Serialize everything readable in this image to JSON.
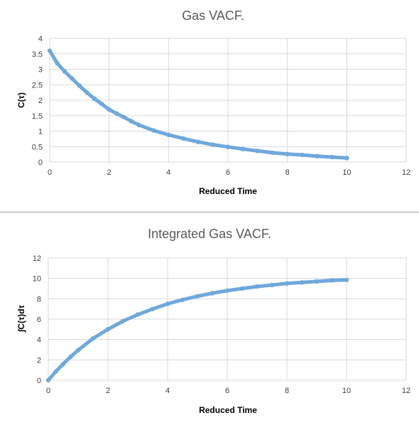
{
  "colors": {
    "series": "#6fa8dc",
    "grid": "#d9d9d9",
    "divider": "#d9d9d9"
  },
  "chart_data": [
    {
      "type": "scatter",
      "title": "Gas VACF.",
      "xlabel": "Reduced Time",
      "ylabel": "C(τ)",
      "xlim": [
        0,
        12
      ],
      "ylim": [
        0,
        4
      ],
      "xticks": [
        "0",
        "2",
        "4",
        "6",
        "8",
        "10",
        "12"
      ],
      "yticks": [
        "0",
        "0.5",
        "1",
        "1.5",
        "2",
        "2.5",
        "3",
        "3.5",
        "4"
      ],
      "grid": true,
      "legend": "none",
      "series": [
        {
          "x": [
            0,
            0.25,
            0.5,
            0.75,
            1,
            1.25,
            1.5,
            1.75,
            2,
            2.25,
            2.5,
            2.75,
            3,
            3.5,
            4,
            4.5,
            5,
            5.5,
            6,
            6.5,
            7,
            7.5,
            8,
            8.5,
            9,
            9.5,
            10
          ],
          "y": [
            3.6,
            3.2,
            2.93,
            2.7,
            2.47,
            2.25,
            2.05,
            1.88,
            1.7,
            1.57,
            1.45,
            1.32,
            1.2,
            1.02,
            0.88,
            0.76,
            0.65,
            0.56,
            0.49,
            0.42,
            0.36,
            0.3,
            0.26,
            0.23,
            0.19,
            0.16,
            0.13
          ]
        }
      ]
    },
    {
      "type": "scatter",
      "title": "Integrated Gas VACF.",
      "xlabel": "Reduced Time",
      "ylabel": "∫C(τ)dτ",
      "xlim": [
        0,
        12
      ],
      "ylim": [
        0,
        12
      ],
      "xticks": [
        "0",
        "2",
        "4",
        "6",
        "8",
        "10",
        "12"
      ],
      "yticks": [
        "0",
        "2",
        "4",
        "6",
        "8",
        "10",
        "12"
      ],
      "grid": true,
      "legend": "none",
      "series": [
        {
          "x": [
            0,
            0.25,
            0.5,
            0.75,
            1,
            1.5,
            2,
            2.5,
            3,
            3.5,
            4,
            4.5,
            5,
            5.5,
            6,
            6.5,
            7,
            7.5,
            8,
            8.5,
            9,
            9.5,
            10
          ],
          "y": [
            0,
            0.85,
            1.6,
            2.3,
            2.95,
            4.1,
            5.0,
            5.8,
            6.45,
            7.0,
            7.5,
            7.9,
            8.25,
            8.55,
            8.8,
            9.0,
            9.2,
            9.35,
            9.5,
            9.6,
            9.7,
            9.8,
            9.85
          ]
        }
      ]
    }
  ]
}
